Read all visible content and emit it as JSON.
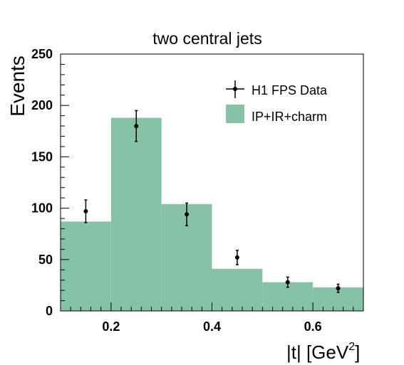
{
  "chart_data": {
    "type": "bar",
    "title": "two central jets",
    "xlabel": "|t| [GeV",
    "xlabel_sup": "2",
    "xlabel_close": "]",
    "ylabel": "Events",
    "xlim": [
      0.1,
      0.7
    ],
    "ylim": [
      0,
      250
    ],
    "grid": false,
    "legend_position": "top-right",
    "x_ticks": [
      {
        "value": 0.2,
        "label": "0.2"
      },
      {
        "value": 0.4,
        "label": "0.4"
      },
      {
        "value": 0.6,
        "label": "0.6"
      }
    ],
    "y_ticks": [
      {
        "value": 0,
        "label": "0"
      },
      {
        "value": 50,
        "label": "50"
      },
      {
        "value": 100,
        "label": "100"
      },
      {
        "value": 150,
        "label": "150"
      },
      {
        "value": 200,
        "label": "200"
      },
      {
        "value": 250,
        "label": "250"
      }
    ],
    "histogram": {
      "name": "IP+IR+charm",
      "color": "#86c3a5",
      "bins": [
        {
          "low": 0.1,
          "high": 0.2,
          "value": 87
        },
        {
          "low": 0.2,
          "high": 0.3,
          "value": 188
        },
        {
          "low": 0.3,
          "high": 0.4,
          "value": 104
        },
        {
          "low": 0.4,
          "high": 0.5,
          "value": 41
        },
        {
          "low": 0.5,
          "high": 0.6,
          "value": 28
        },
        {
          "low": 0.6,
          "high": 0.7,
          "value": 23
        }
      ]
    },
    "points": {
      "name": "H1 FPS Data",
      "color": "#000000",
      "data": [
        {
          "x": 0.15,
          "y": 97,
          "err": 11
        },
        {
          "x": 0.25,
          "y": 180,
          "err": 15
        },
        {
          "x": 0.35,
          "y": 94,
          "err": 11
        },
        {
          "x": 0.45,
          "y": 52,
          "err": 7
        },
        {
          "x": 0.55,
          "y": 28,
          "err": 5
        },
        {
          "x": 0.65,
          "y": 22,
          "err": 4
        }
      ]
    }
  }
}
